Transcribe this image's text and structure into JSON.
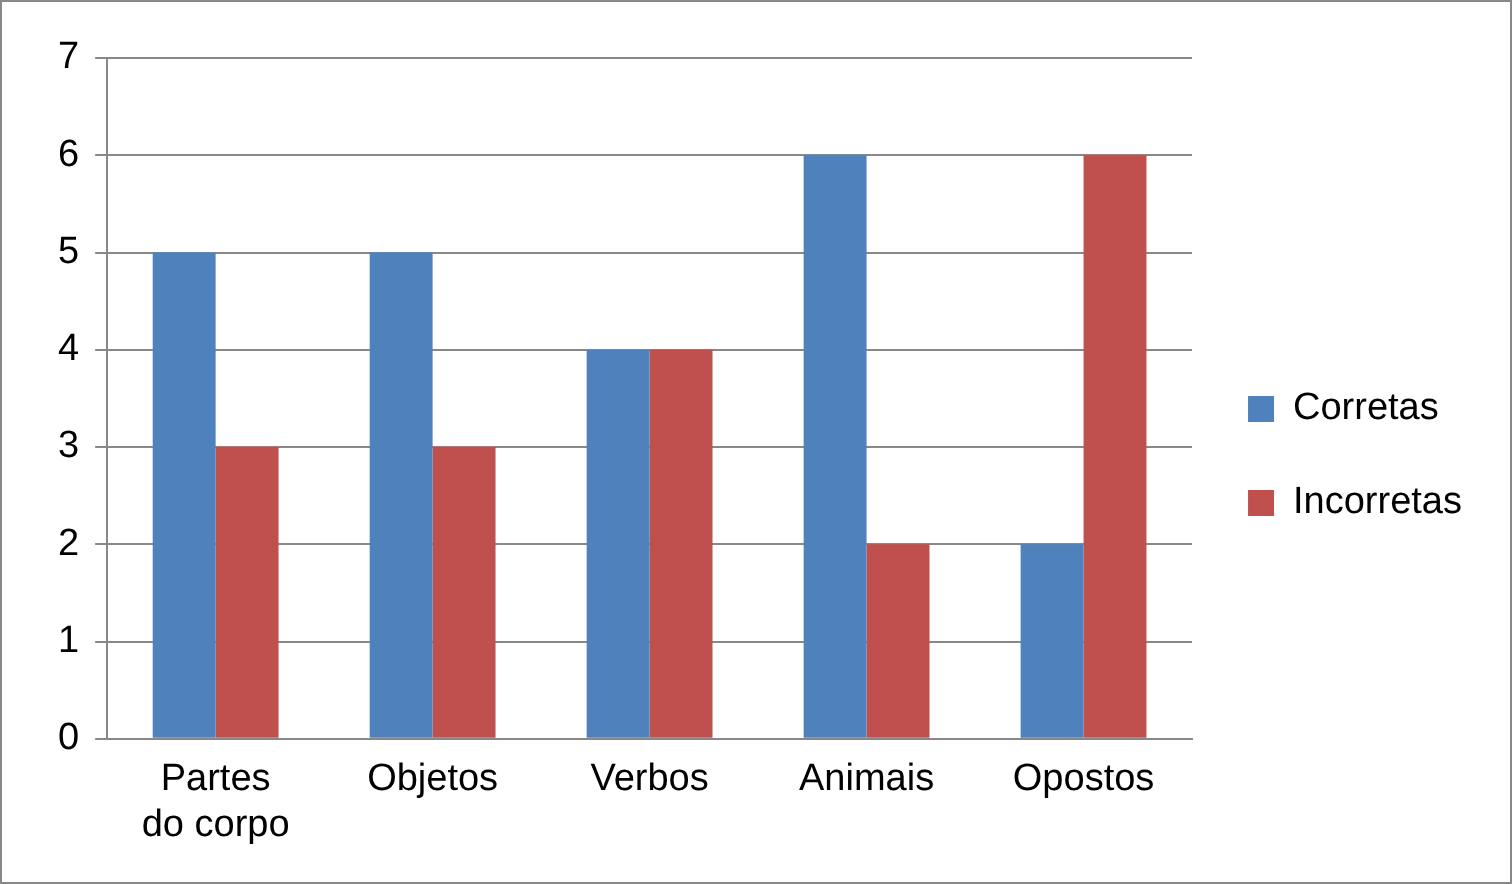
{
  "chart_data": {
    "type": "bar",
    "categories": [
      "Partes do corpo",
      "Objetos",
      "Verbos",
      "Animais",
      "Opostos"
    ],
    "series": [
      {
        "name": "Corretas",
        "color": "#4f81bd",
        "values": [
          5,
          5,
          4,
          6,
          2
        ]
      },
      {
        "name": "Incorretas",
        "color": "#c0504d",
        "values": [
          3,
          3,
          4,
          2,
          6
        ]
      }
    ],
    "ylim": [
      0,
      7
    ],
    "yticks": [
      0,
      1,
      2,
      3,
      4,
      5,
      6,
      7
    ],
    "grid": "y",
    "legend": "right"
  }
}
